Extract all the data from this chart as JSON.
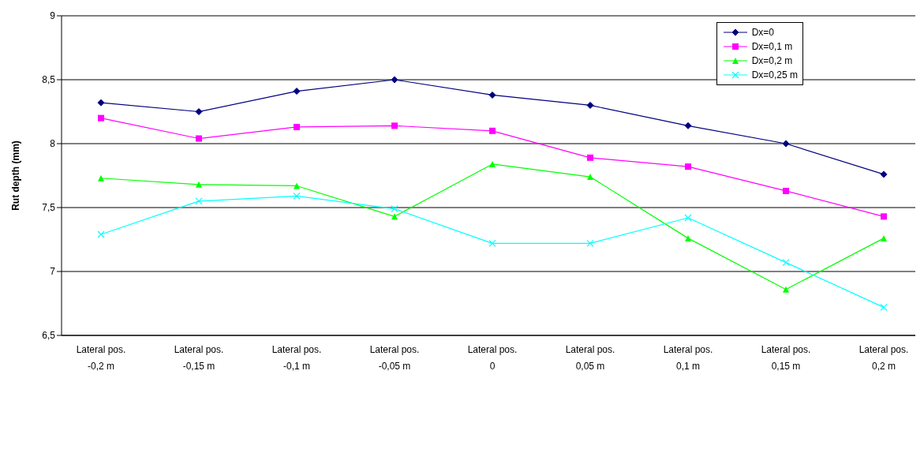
{
  "chart_data": {
    "type": "line",
    "ylabel": "Rut depth (mm)",
    "categories": [
      "Lateral pos.\n-0,2 m",
      "Lateral pos.\n-0,15 m",
      "Lateral pos.\n-0,1 m",
      "Lateral pos.\n-0,05 m",
      "Lateral pos.\n0",
      "Lateral pos.\n0,05 m",
      "Lateral pos.\n0,1 m",
      "Lateral pos.\n0,15 m",
      "Lateral pos.\n0,2 m"
    ],
    "series": [
      {
        "name": "Dx=0",
        "color": "#000080",
        "marker": "diamond",
        "values": [
          8.32,
          8.25,
          8.41,
          8.5,
          8.38,
          8.3,
          8.14,
          8.0,
          7.76
        ]
      },
      {
        "name": "Dx=0,1 m",
        "color": "#ff00ff",
        "marker": "square",
        "values": [
          8.2,
          8.04,
          8.13,
          8.14,
          8.1,
          7.89,
          7.82,
          7.63,
          7.43
        ]
      },
      {
        "name": "Dx=0,2 m",
        "color": "#00ff00",
        "marker": "triangle",
        "values": [
          7.73,
          7.68,
          7.67,
          7.43,
          7.84,
          7.74,
          7.26,
          6.86,
          7.26
        ]
      },
      {
        "name": "Dx=0,25 m",
        "color": "#00ffff",
        "marker": "cross",
        "values": [
          7.29,
          7.55,
          7.59,
          7.49,
          7.22,
          7.22,
          7.42,
          7.07,
          6.72
        ]
      }
    ],
    "ylim": [
      6.5,
      9
    ],
    "yticks": [
      {
        "value": 6.5,
        "label": "6,5"
      },
      7,
      {
        "value": 7.5,
        "label": "7,5"
      },
      8,
      {
        "value": 8.5,
        "label": "8,5"
      },
      9
    ],
    "grid": "y",
    "legend": "top right",
    "line_style": "solid"
  }
}
